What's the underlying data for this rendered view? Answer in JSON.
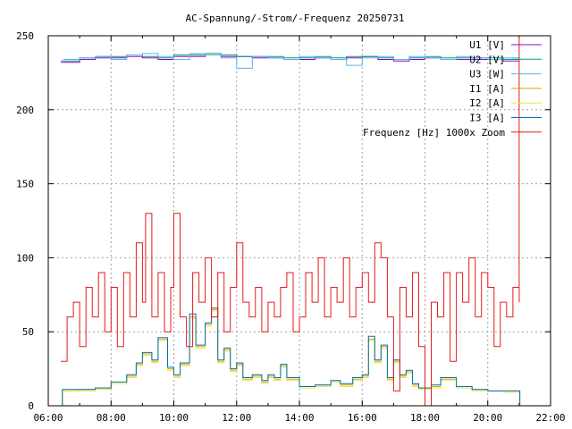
{
  "chart_data": {
    "type": "line",
    "title": "AC-Spannung/-Strom/-Frequenz 20250731",
    "xlabel": "",
    "ylabel": "",
    "xlim": [
      6,
      22
    ],
    "ylim": [
      0,
      250
    ],
    "grid": true,
    "legend_position": "top-right",
    "x_ticks": [
      {
        "v": 6,
        "label": "06:00"
      },
      {
        "v": 8,
        "label": "08:00"
      },
      {
        "v": 10,
        "label": "10:00"
      },
      {
        "v": 12,
        "label": "12:00"
      },
      {
        "v": 14,
        "label": "14:00"
      },
      {
        "v": 16,
        "label": "16:00"
      },
      {
        "v": 18,
        "label": "18:00"
      },
      {
        "v": 20,
        "label": "20:00"
      },
      {
        "v": 22,
        "label": "22:00"
      }
    ],
    "y_ticks": [
      {
        "v": 0,
        "label": "0"
      },
      {
        "v": 50,
        "label": "50"
      },
      {
        "v": 100,
        "label": "100"
      },
      {
        "v": 150,
        "label": "150"
      },
      {
        "v": 200,
        "label": "200"
      },
      {
        "v": 250,
        "label": "250"
      }
    ],
    "series": [
      {
        "name": "U1 [V]",
        "color": "#9400d3",
        "x": [
          6.4,
          6.5,
          7,
          7.5,
          8,
          8.5,
          9,
          9.5,
          10,
          10.5,
          11,
          11.5,
          12,
          12.5,
          13,
          13.5,
          14,
          14.5,
          15,
          15.5,
          16,
          16.5,
          17,
          17.5,
          18,
          18.5,
          19,
          19.5,
          20,
          20.5,
          21
        ],
        "y": [
          232,
          232,
          234,
          235,
          235,
          236,
          235,
          234,
          236,
          236,
          237,
          236,
          236,
          235,
          235,
          234,
          234,
          235,
          234,
          235,
          236,
          234,
          233,
          234,
          235,
          234,
          234,
          234,
          234,
          233,
          233
        ]
      },
      {
        "name": "U2 [V]",
        "color": "#009e73",
        "x": [
          6.4,
          6.5,
          7,
          7.5,
          8,
          8.5,
          9,
          9.5,
          10,
          10.5,
          11,
          11.5,
          12,
          12.5,
          13,
          13.5,
          14,
          14.5,
          15,
          15.5,
          16,
          16.5,
          17,
          17.5,
          18,
          18.5,
          19,
          19.5,
          20,
          20.5,
          21
        ],
        "y": [
          233,
          233,
          235,
          236,
          236,
          237,
          236,
          235,
          237,
          237,
          238,
          237,
          236,
          236,
          236,
          235,
          235,
          236,
          235,
          236,
          236,
          235,
          234,
          235,
          236,
          235,
          235,
          235,
          235,
          234,
          234
        ]
      },
      {
        "name": "U3 [W]",
        "color": "#56b4e9",
        "x": [
          6.4,
          6.5,
          7,
          7.5,
          8,
          8.5,
          9,
          9.5,
          10,
          10.5,
          11,
          11.5,
          12,
          12.5,
          13,
          13.5,
          14,
          14.5,
          15,
          15.5,
          16,
          16.5,
          17,
          17.5,
          18,
          18.5,
          19,
          19.5,
          20,
          20.5,
          21
        ],
        "y": [
          233,
          234,
          235,
          236,
          234,
          237,
          238,
          236,
          234,
          238,
          237,
          235,
          228,
          236,
          235,
          234,
          236,
          235,
          234,
          230,
          235,
          236,
          234,
          236,
          235,
          234,
          236,
          235,
          234,
          235,
          234
        ]
      },
      {
        "name": "I1 [A]",
        "color": "#e69f00",
        "x": [
          6.4,
          6.45,
          7,
          7.5,
          8,
          8.5,
          8.8,
          9,
          9.3,
          9.5,
          9.8,
          10,
          10.2,
          10.5,
          10.7,
          11,
          11.2,
          11.4,
          11.6,
          11.8,
          12,
          12.2,
          12.5,
          12.8,
          13,
          13.2,
          13.4,
          13.6,
          14,
          14.5,
          15,
          15.3,
          15.7,
          16,
          16.2,
          16.4,
          16.6,
          16.8,
          17,
          17.2,
          17.4,
          17.6,
          17.8,
          18,
          18.2,
          18.5,
          19,
          19.5,
          20,
          20.5,
          21,
          21.02
        ],
        "y": [
          0,
          10,
          11,
          12,
          16,
          20,
          28,
          35,
          30,
          45,
          25,
          20,
          28,
          60,
          40,
          55,
          65,
          30,
          38,
          24,
          28,
          18,
          20,
          16,
          20,
          18,
          27,
          18,
          13,
          14,
          17,
          14,
          18,
          20,
          45,
          30,
          40,
          18,
          30,
          20,
          23,
          14,
          12,
          12,
          13,
          18,
          13,
          11,
          10,
          10,
          10,
          0
        ]
      },
      {
        "name": "I2 [A]",
        "color": "#f0e442",
        "x": [
          6.4,
          6.45,
          7,
          7.5,
          8,
          8.5,
          8.8,
          9,
          9.3,
          9.5,
          9.8,
          10,
          10.2,
          10.5,
          10.7,
          11,
          11.2,
          11.4,
          11.6,
          11.8,
          12,
          12.2,
          12.5,
          12.8,
          13,
          13.2,
          13.4,
          13.6,
          14,
          14.5,
          15,
          15.3,
          15.7,
          16,
          16.2,
          16.4,
          16.6,
          16.8,
          17,
          17.2,
          17.4,
          17.6,
          17.8,
          18,
          18.2,
          18.5,
          19,
          19.5,
          20,
          20.5,
          21,
          21.02
        ],
        "y": [
          0,
          10,
          10,
          11,
          15,
          19,
          27,
          34,
          29,
          44,
          24,
          19,
          27,
          59,
          39,
          54,
          64,
          29,
          37,
          23,
          27,
          17,
          19,
          15,
          19,
          17,
          26,
          17,
          12,
          13,
          16,
          13,
          17,
          19,
          44,
          29,
          39,
          17,
          29,
          19,
          22,
          13,
          11,
          11,
          12,
          17,
          12,
          10,
          10,
          9,
          9,
          0
        ]
      },
      {
        "name": "I3 [A]",
        "color": "#0072b2",
        "x": [
          6.4,
          6.45,
          7,
          7.5,
          8,
          8.5,
          8.8,
          9,
          9.3,
          9.5,
          9.8,
          10,
          10.2,
          10.5,
          10.7,
          11,
          11.2,
          11.4,
          11.6,
          11.8,
          12,
          12.2,
          12.5,
          12.8,
          13,
          13.2,
          13.4,
          13.6,
          14,
          14.5,
          15,
          15.3,
          15.7,
          16,
          16.2,
          16.4,
          16.6,
          16.8,
          17,
          17.2,
          17.4,
          17.6,
          17.8,
          18,
          18.2,
          18.5,
          19,
          19.5,
          20,
          20.5,
          21,
          21.02
        ],
        "y": [
          0,
          11,
          11,
          12,
          16,
          21,
          29,
          36,
          31,
          46,
          26,
          21,
          29,
          62,
          41,
          56,
          66,
          31,
          39,
          25,
          29,
          19,
          21,
          17,
          21,
          19,
          28,
          19,
          13,
          14,
          17,
          15,
          19,
          21,
          47,
          31,
          41,
          19,
          31,
          21,
          24,
          15,
          12,
          12,
          14,
          19,
          13,
          11,
          10,
          10,
          10,
          0
        ]
      },
      {
        "name": "Frequenz [Hz] 1000x Zoom",
        "color": "#e41a1c",
        "x": [
          6.4,
          6.6,
          6.8,
          7.0,
          7.2,
          7.4,
          7.6,
          7.8,
          8.0,
          8.2,
          8.4,
          8.6,
          8.8,
          9.0,
          9.1,
          9.3,
          9.5,
          9.7,
          9.9,
          10.0,
          10.2,
          10.4,
          10.6,
          10.8,
          11.0,
          11.2,
          11.4,
          11.6,
          11.8,
          12.0,
          12.2,
          12.4,
          12.6,
          12.8,
          13.0,
          13.2,
          13.4,
          13.6,
          13.8,
          14.0,
          14.2,
          14.4,
          14.6,
          14.8,
          15.0,
          15.2,
          15.4,
          15.6,
          15.8,
          16.0,
          16.2,
          16.4,
          16.6,
          16.8,
          17.0,
          17.2,
          17.4,
          17.6,
          17.8,
          18.0,
          18.2,
          18.4,
          18.6,
          18.8,
          19.0,
          19.2,
          19.4,
          19.6,
          19.8,
          20.0,
          20.2,
          20.4,
          20.6,
          20.8,
          21.0,
          21.0
        ],
        "y": [
          30,
          60,
          70,
          40,
          80,
          60,
          90,
          50,
          80,
          40,
          90,
          60,
          110,
          70,
          130,
          60,
          90,
          50,
          80,
          130,
          60,
          40,
          90,
          70,
          100,
          60,
          90,
          50,
          80,
          110,
          70,
          60,
          80,
          50,
          70,
          60,
          80,
          90,
          50,
          60,
          90,
          70,
          100,
          60,
          80,
          70,
          100,
          60,
          80,
          90,
          70,
          110,
          100,
          60,
          10,
          80,
          60,
          90,
          40,
          0,
          70,
          60,
          90,
          30,
          90,
          70,
          100,
          60,
          90,
          80,
          40,
          70,
          60,
          80,
          70,
          250
        ]
      }
    ]
  }
}
